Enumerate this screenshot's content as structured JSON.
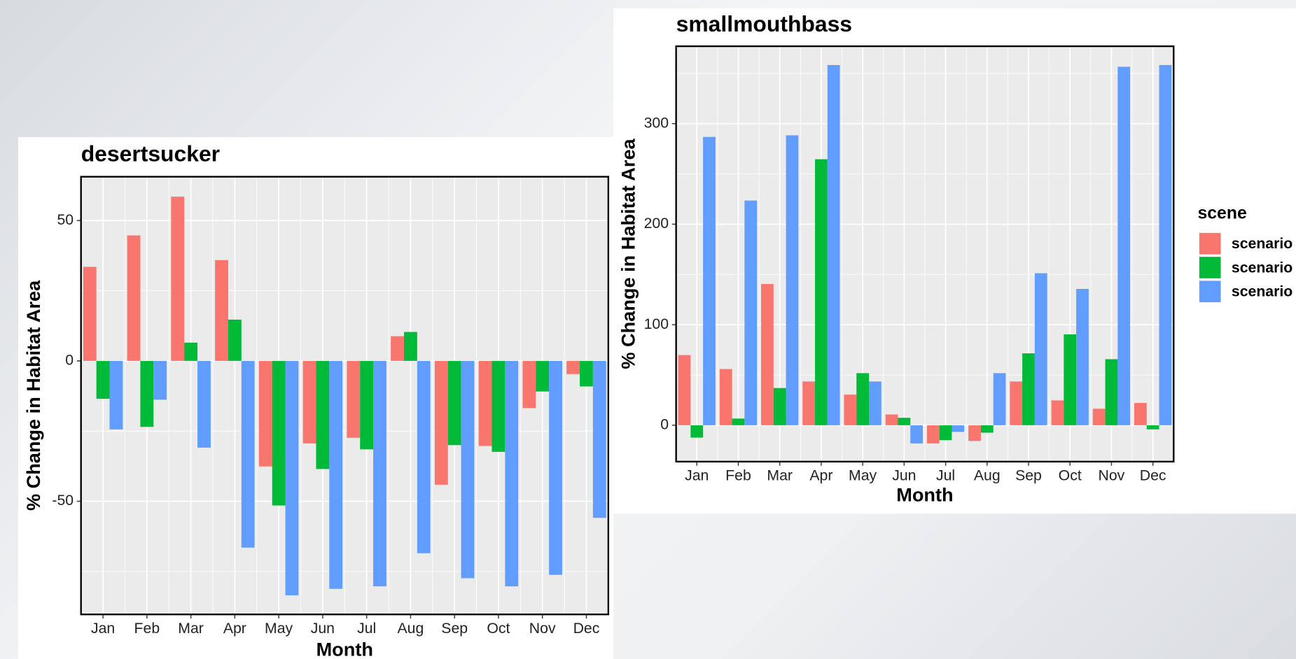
{
  "chart_data": [
    {
      "type": "bar",
      "title": "desertsucker",
      "x_label": "Month",
      "y_label": "% Change in Habitat Area",
      "categories": [
        "Jan",
        "Feb",
        "Mar",
        "Apr",
        "May",
        "Jun",
        "Jul",
        "Aug",
        "Sep",
        "Oct",
        "Nov",
        "Dec"
      ],
      "series": [
        {
          "color": "#F8766D",
          "values": [
            33.5,
            44.7,
            58.5,
            35.9,
            -37.6,
            -29.4,
            -27.4,
            8.8,
            -44.1,
            -30.3,
            -16.8,
            -4.7
          ]
        },
        {
          "color": "#00BA38",
          "values": [
            -13.5,
            -23.5,
            6.5,
            14.7,
            -51.5,
            -38.5,
            -31.5,
            10.3,
            -30,
            -32.4,
            -10.9,
            -9.1
          ]
        },
        {
          "color": "#619CFF",
          "values": [
            -24.4,
            -13.8,
            -30.9,
            -66.5,
            -83.5,
            -81.2,
            -80.3,
            -68.5,
            -77.4,
            -80.3,
            -76.2,
            -55.9
          ]
        }
      ],
      "ylim": [
        -90.3,
        65.6
      ],
      "yticks": [
        -50,
        0,
        50
      ],
      "grid": true
    },
    {
      "type": "bar",
      "title": "smallmouthbass",
      "x_label": "Month",
      "y_label": "% Change in Habitat Area",
      "categories": [
        "Jan",
        "Feb",
        "Mar",
        "Apr",
        "May",
        "Jun",
        "Jul",
        "Aug",
        "Sep",
        "Oct",
        "Nov",
        "Dec"
      ],
      "series": [
        {
          "name": "scenario",
          "color": "#F8766D",
          "values": [
            69.8,
            55.9,
            140.5,
            43.5,
            30.4,
            10.7,
            -18.1,
            -15.6,
            43.5,
            24.7,
            16.4,
            22.2
          ]
        },
        {
          "name": "scenario",
          "color": "#00BA38",
          "values": [
            -12.3,
            6.6,
            37,
            264.6,
            51.8,
            7.4,
            -14.8,
            -7.4,
            71.5,
            90.4,
            65.7,
            -4.1
          ]
        },
        {
          "name": "scenario",
          "color": "#619CFF",
          "values": [
            286.8,
            223.5,
            288.4,
            358.3,
            43.5,
            -18.1,
            -6.6,
            51.8,
            151.2,
            135.6,
            356.6,
            358.3
          ]
        }
      ],
      "ylim": [
        -36.2,
        377
      ],
      "yticks": [
        0,
        100,
        200,
        300
      ],
      "grid": true,
      "legend": "right",
      "legend_title": "scene"
    }
  ]
}
